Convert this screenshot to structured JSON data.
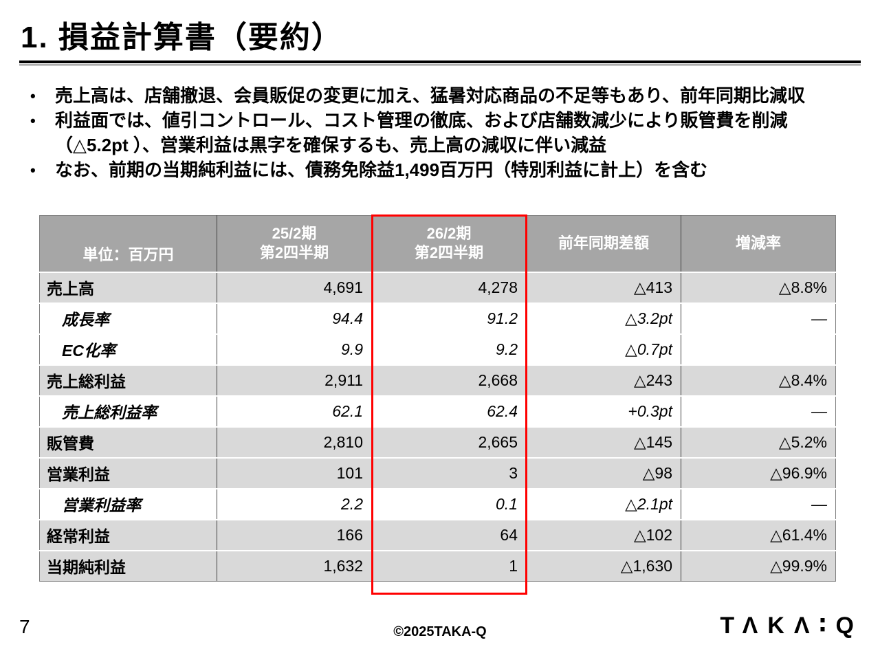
{
  "slide": {
    "title": "1. 損益計算書（要約）",
    "page_number": "7",
    "copyright": "©2025TAKA-Q",
    "logo_text": "ΤΛΚΛ∶Q"
  },
  "bullets": {
    "marker": "•",
    "items": [
      "売上高は、店舗撤退、会員販促の変更に加え、猛暑対応商品の不足等もあり、前年同期比減収",
      "利益面では、値引コントロール、コスト管理の徹底、および店舗数減少により販管費を削減（△5.2pt ）、営業利益は黒字を確保するも、売上高の減収に伴い減益",
      "なお、前期の当期純利益には、債務免除益1,499百万円（特別利益に計上）を含む"
    ]
  },
  "table": {
    "unit_label": "単位：百万円",
    "col_headers": [
      {
        "line1": "25/2期",
        "line2": "第2四半期"
      },
      {
        "line1": "26/2期",
        "line2": "第2四半期"
      },
      {
        "line1": "前年同期差額",
        "line2": ""
      },
      {
        "line1": "増減率",
        "line2": ""
      }
    ],
    "colors": {
      "header_bg": "#a6a6a6",
      "row_bg": "#d9d9d9",
      "highlight_border": "#ff0000"
    },
    "rows": [
      {
        "label": "売上高",
        "prev": "4,691",
        "curr": "4,278",
        "diff": "△413",
        "rate": "△8.8%"
      },
      {
        "label": "成長率",
        "prev": "94.4",
        "curr": "91.2",
        "diff": "△3.2pt",
        "rate": "—"
      },
      {
        "label": "EC化率",
        "prev": "9.9",
        "curr": "9.2",
        "diff": "△0.7pt",
        "rate": ""
      },
      {
        "label": "売上総利益",
        "prev": "2,911",
        "curr": "2,668",
        "diff": "△243",
        "rate": "△8.4%"
      },
      {
        "label": "売上総利益率",
        "prev": "62.1",
        "curr": "62.4",
        "diff": "+0.3pt",
        "rate": "—"
      },
      {
        "label": "販管費",
        "prev": "2,810",
        "curr": "2,665",
        "diff": "△145",
        "rate": "△5.2%"
      },
      {
        "label": "営業利益",
        "prev": "101",
        "curr": "3",
        "diff": "△98",
        "rate": "△96.9%"
      },
      {
        "label": "営業利益率",
        "prev": "2.2",
        "curr": "0.1",
        "diff": "△2.1pt",
        "rate": "—"
      },
      {
        "label": "経常利益",
        "prev": "166",
        "curr": "64",
        "diff": "△102",
        "rate": "△61.4%"
      },
      {
        "label": "当期純利益",
        "prev": "1,632",
        "curr": "1",
        "diff": "△1,630",
        "rate": "△99.9%"
      }
    ]
  }
}
